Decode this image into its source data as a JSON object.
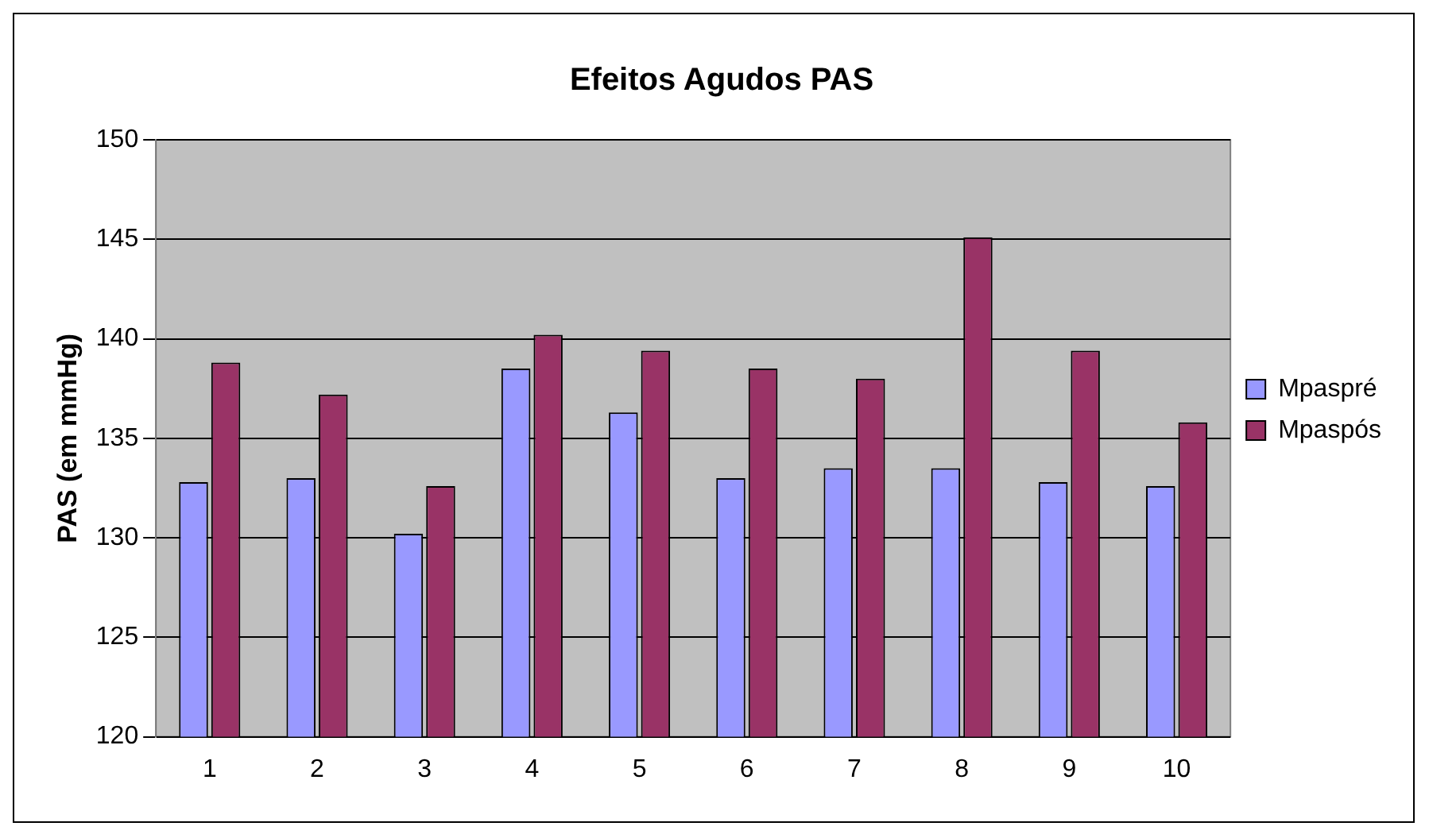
{
  "chart_data": {
    "type": "bar",
    "title": "Efeitos Agudos PAS",
    "ylabel": "PAS (em mmHg)",
    "categories": [
      "1",
      "2",
      "3",
      "4",
      "5",
      "6",
      "7",
      "8",
      "9",
      "10"
    ],
    "series": [
      {
        "name": "Mpaspré",
        "color": "#9999ff",
        "values": [
          132.8,
          133,
          130.2,
          138.5,
          136.3,
          133,
          133.5,
          133.5,
          132.8,
          132.6
        ]
      },
      {
        "name": "Mpaspós",
        "color": "#993366",
        "values": [
          138.8,
          137.2,
          132.6,
          140.2,
          139.4,
          138.5,
          138,
          145.1,
          139.4,
          135.8
        ]
      }
    ],
    "ylim": [
      120,
      150
    ],
    "yticks": [
      120,
      125,
      130,
      135,
      140,
      145,
      150
    ],
    "grid": "y",
    "legend": "right"
  }
}
